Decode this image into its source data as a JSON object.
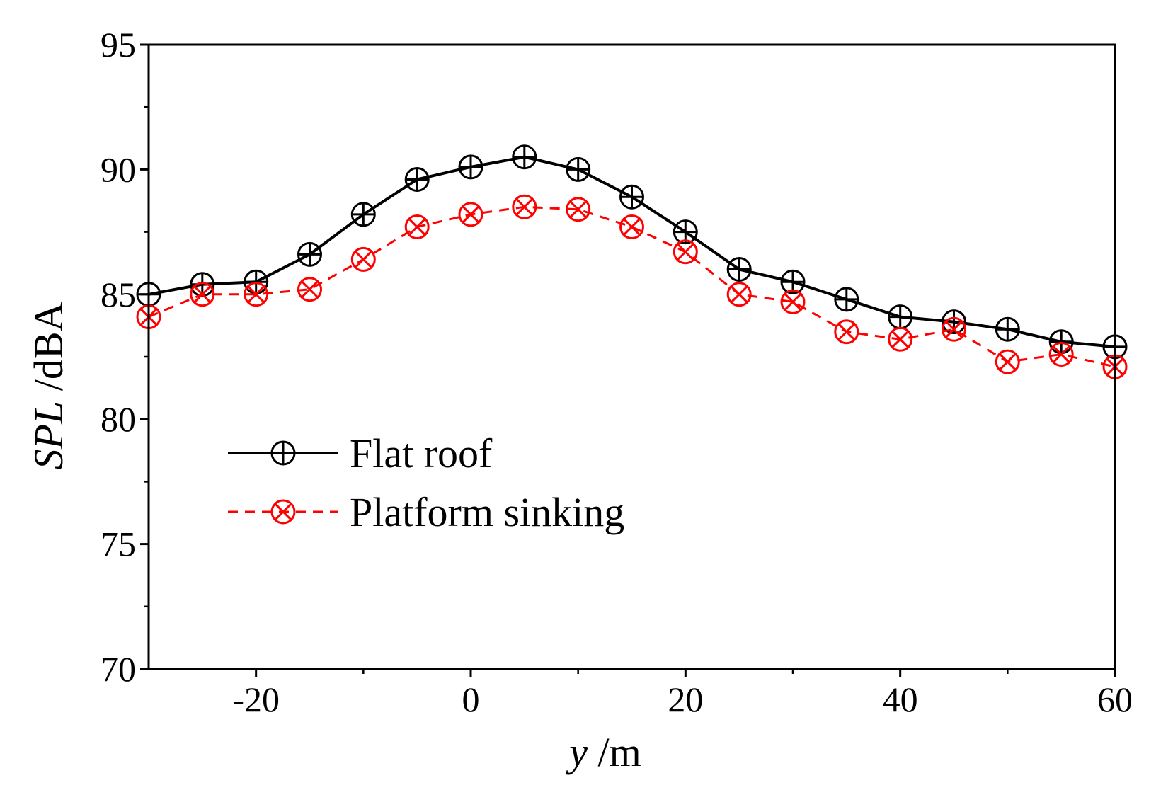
{
  "chart_data": {
    "type": "line",
    "title": "",
    "xlabel": {
      "var": "y",
      "unit": " /m"
    },
    "ylabel": {
      "var": "SPL",
      "unit": " /dBA"
    },
    "xlim": [
      -30,
      60
    ],
    "ylim": [
      70,
      95
    ],
    "xticks": [
      -20,
      0,
      20,
      40,
      60
    ],
    "yticks": [
      70,
      75,
      80,
      85,
      90,
      95
    ],
    "x": [
      -30,
      -25,
      -20,
      -15,
      -10,
      -5,
      0,
      5,
      10,
      15,
      20,
      25,
      30,
      35,
      40,
      45,
      50,
      55,
      60
    ],
    "series": [
      {
        "name": "Flat roof",
        "color": "#000000",
        "dash": "solid",
        "marker": "circle-plus",
        "values": [
          85.0,
          85.4,
          85.5,
          86.6,
          88.2,
          89.6,
          90.1,
          90.5,
          90.0,
          88.9,
          87.5,
          86.0,
          85.5,
          84.8,
          84.1,
          83.9,
          83.6,
          83.1,
          82.9
        ]
      },
      {
        "name": "Platform sinking",
        "color": "#ff0000",
        "dash": "dashed",
        "marker": "circle-x",
        "values": [
          84.1,
          85.0,
          85.0,
          85.2,
          86.4,
          87.7,
          88.2,
          88.5,
          88.4,
          87.7,
          86.7,
          85.0,
          84.7,
          83.5,
          83.2,
          83.6,
          82.3,
          82.6,
          82.1
        ]
      }
    ],
    "legend": {
      "placement": "center-left"
    }
  }
}
